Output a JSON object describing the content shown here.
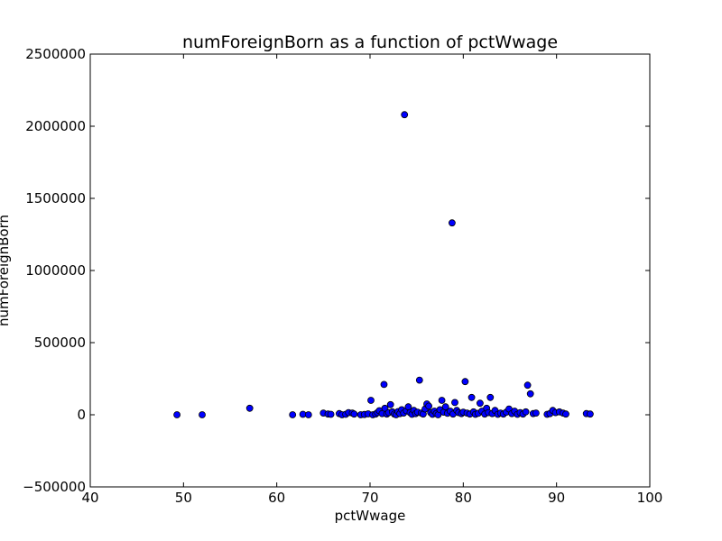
{
  "chart_data": {
    "type": "scatter",
    "title": "numForeignBorn as a function of pctWwage",
    "xlabel": "pctWwage",
    "ylabel": "numForeignBorn",
    "xlim": [
      40,
      100
    ],
    "ylim": [
      -500000,
      2500000
    ],
    "xticks": [
      "40",
      "50",
      "60",
      "70",
      "80",
      "90",
      "100"
    ],
    "yticks": [
      "−500000",
      "0",
      "500000",
      "1000000",
      "1500000",
      "2000000",
      "2500000"
    ],
    "grid": false,
    "point_color": "#0000ff",
    "points": [
      [
        49.3,
        0
      ],
      [
        52.0,
        0
      ],
      [
        57.1,
        45000
      ],
      [
        61.7,
        0
      ],
      [
        62.8,
        3000
      ],
      [
        63.4,
        0
      ],
      [
        65.0,
        12000
      ],
      [
        65.5,
        5000
      ],
      [
        65.8,
        3000
      ],
      [
        66.7,
        8000
      ],
      [
        67.0,
        0
      ],
      [
        67.4,
        3000
      ],
      [
        67.7,
        15000
      ],
      [
        68.1,
        12000
      ],
      [
        68.3,
        5000
      ],
      [
        69.0,
        0
      ],
      [
        69.4,
        2000
      ],
      [
        69.8,
        6000
      ],
      [
        70.1,
        100000
      ],
      [
        70.3,
        0
      ],
      [
        70.6,
        5000
      ],
      [
        70.8,
        15000
      ],
      [
        71.0,
        28000
      ],
      [
        71.3,
        8000
      ],
      [
        71.5,
        210000
      ],
      [
        71.6,
        45000
      ],
      [
        71.8,
        5000
      ],
      [
        72.0,
        15000
      ],
      [
        72.2,
        70000
      ],
      [
        72.4,
        20000
      ],
      [
        72.6,
        5000
      ],
      [
        72.8,
        0
      ],
      [
        73.0,
        22000
      ],
      [
        73.2,
        8000
      ],
      [
        73.4,
        35000
      ],
      [
        73.6,
        12000
      ],
      [
        73.7,
        2080000
      ],
      [
        73.9,
        28000
      ],
      [
        74.1,
        55000
      ],
      [
        74.3,
        15000
      ],
      [
        74.5,
        3000
      ],
      [
        74.7,
        30000
      ],
      [
        74.9,
        8000
      ],
      [
        75.1,
        18000
      ],
      [
        75.3,
        240000
      ],
      [
        75.5,
        12000
      ],
      [
        75.7,
        5000
      ],
      [
        75.9,
        40000
      ],
      [
        76.1,
        75000
      ],
      [
        76.3,
        60000
      ],
      [
        76.5,
        15000
      ],
      [
        76.7,
        3000
      ],
      [
        76.9,
        25000
      ],
      [
        77.1,
        8000
      ],
      [
        77.3,
        0
      ],
      [
        77.5,
        35000
      ],
      [
        77.7,
        100000
      ],
      [
        77.9,
        18000
      ],
      [
        78.1,
        55000
      ],
      [
        78.3,
        10000
      ],
      [
        78.6,
        25000
      ],
      [
        78.8,
        1330000
      ],
      [
        78.9,
        5000
      ],
      [
        79.1,
        85000
      ],
      [
        79.3,
        30000
      ],
      [
        79.5,
        15000
      ],
      [
        79.8,
        8000
      ],
      [
        80.0,
        18000
      ],
      [
        80.2,
        230000
      ],
      [
        80.4,
        12000
      ],
      [
        80.7,
        5000
      ],
      [
        80.9,
        120000
      ],
      [
        81.1,
        20000
      ],
      [
        81.3,
        3000
      ],
      [
        81.6,
        10000
      ],
      [
        81.8,
        80000
      ],
      [
        82.0,
        25000
      ],
      [
        82.3,
        5000
      ],
      [
        82.5,
        45000
      ],
      [
        82.7,
        15000
      ],
      [
        82.9,
        120000
      ],
      [
        83.1,
        8000
      ],
      [
        83.4,
        30000
      ],
      [
        83.7,
        3000
      ],
      [
        84.0,
        12000
      ],
      [
        84.3,
        5000
      ],
      [
        84.6,
        18000
      ],
      [
        84.9,
        40000
      ],
      [
        85.2,
        8000
      ],
      [
        85.5,
        25000
      ],
      [
        85.8,
        3000
      ],
      [
        86.1,
        15000
      ],
      [
        86.4,
        5000
      ],
      [
        86.7,
        20000
      ],
      [
        86.9,
        205000
      ],
      [
        87.2,
        145000
      ],
      [
        87.5,
        8000
      ],
      [
        87.8,
        12000
      ],
      [
        89.0,
        3000
      ],
      [
        89.3,
        8000
      ],
      [
        89.6,
        30000
      ],
      [
        89.9,
        15000
      ],
      [
        90.3,
        20000
      ],
      [
        90.7,
        12000
      ],
      [
        91.0,
        5000
      ],
      [
        93.2,
        8000
      ],
      [
        93.6,
        5000
      ]
    ]
  }
}
